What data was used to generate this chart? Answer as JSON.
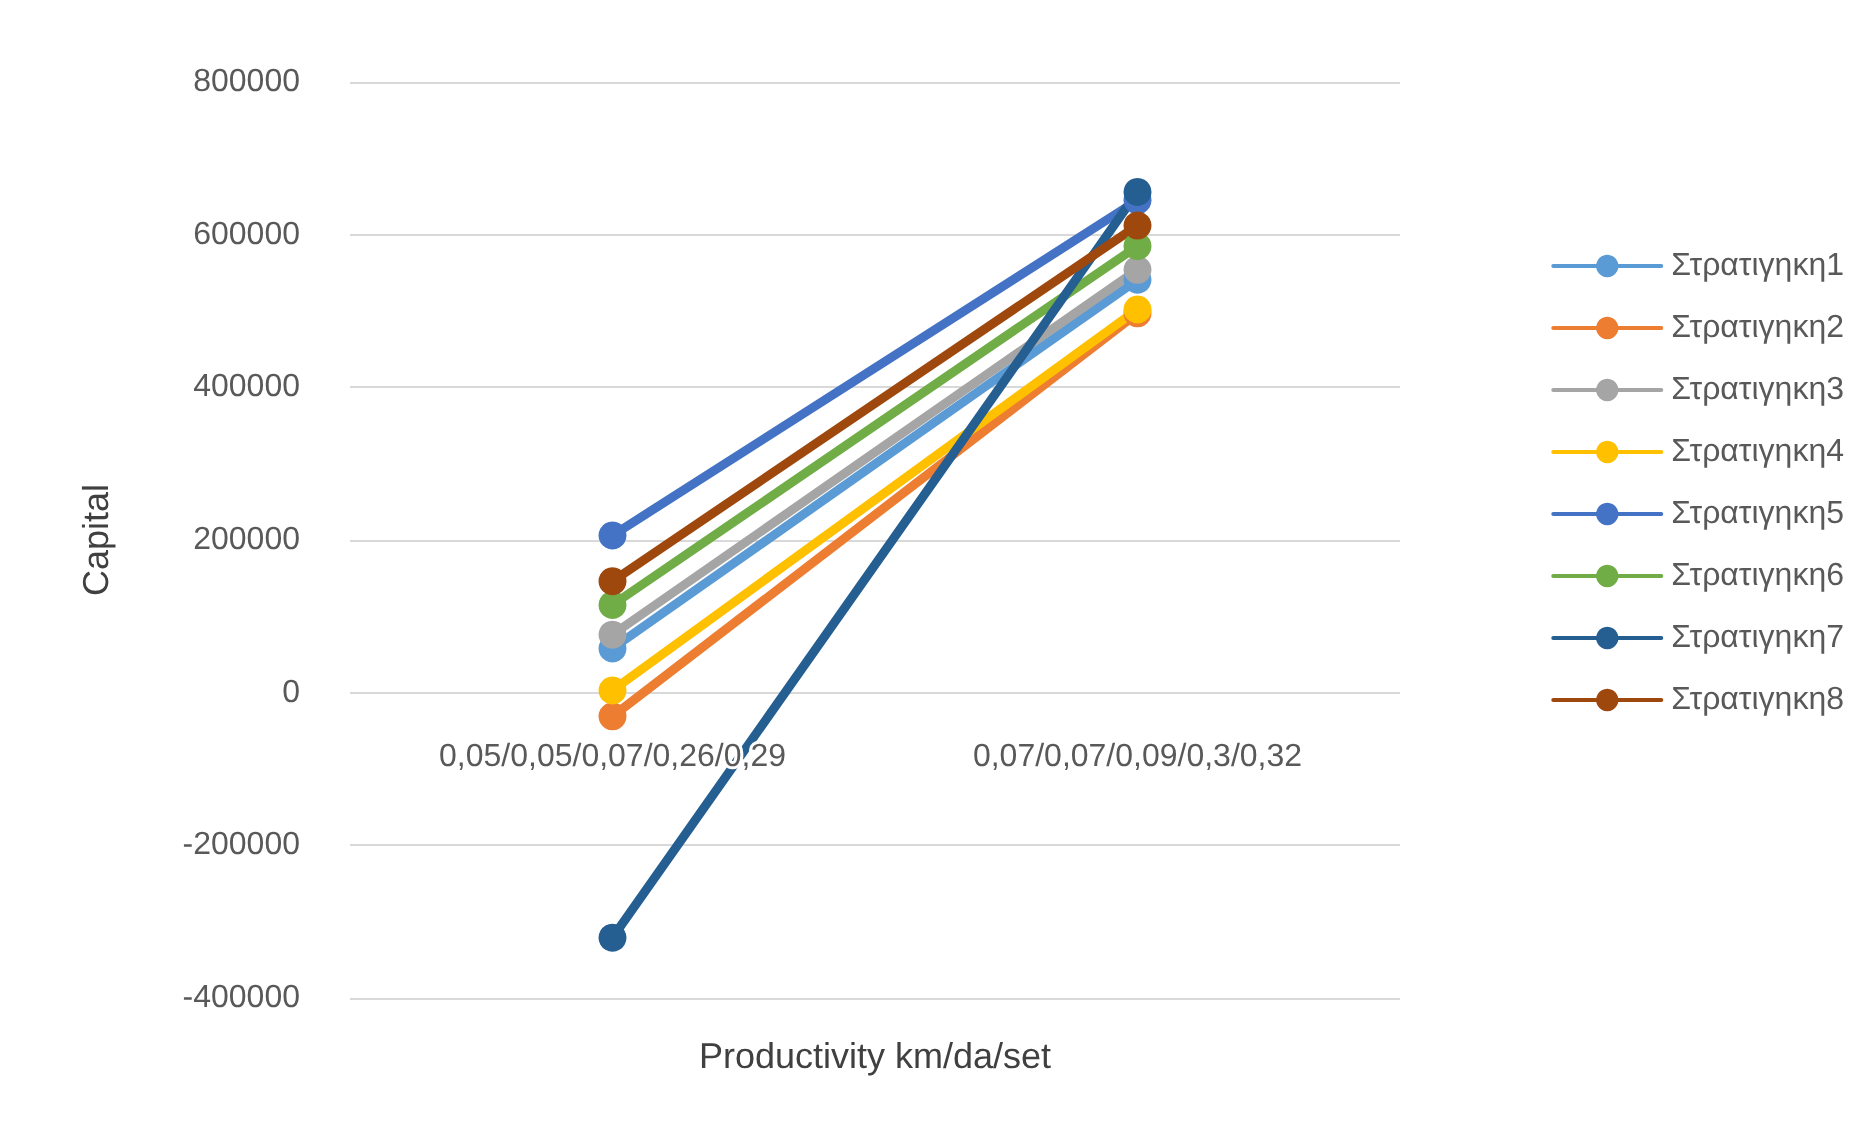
{
  "chart_data": {
    "type": "line",
    "xlabel": "Productivity km/da/set",
    "ylabel": "Capital",
    "categories": [
      "0,05/0,05/0,07/0,26/0,29",
      "0,07/0,07/0,09/0,3/0,32"
    ],
    "series": [
      {
        "name": "Στρατιγηκη1",
        "color": "#5b9bd5",
        "values": [
          58000,
          541000
        ]
      },
      {
        "name": "Στρατιγηκη2",
        "color": "#ed7d31",
        "values": [
          -31000,
          497000
        ]
      },
      {
        "name": "Στρατιγηκη3",
        "color": "#a5a5a5",
        "values": [
          76000,
          554000
        ]
      },
      {
        "name": "Στρατιγηκη4",
        "color": "#ffc000",
        "values": [
          3000,
          502000
        ]
      },
      {
        "name": "Στρατιγηκη5",
        "color": "#4472c4",
        "values": [
          206000,
          645000
        ]
      },
      {
        "name": "Στρατιγηκη6",
        "color": "#70ad47",
        "values": [
          115000,
          585000
        ]
      },
      {
        "name": "Στρατιγηκη7",
        "color": "#255e91",
        "values": [
          -321000,
          656000
        ]
      },
      {
        "name": "Στρατιγηκη8",
        "color": "#9e480e",
        "values": [
          146000,
          612000
        ]
      }
    ],
    "ylim": [
      -400000,
      800000
    ],
    "yticks": [
      -400000,
      -200000,
      0,
      200000,
      400000,
      600000,
      800000
    ],
    "grid": "y",
    "legend": "right",
    "marker": "circle",
    "line_style": "solid"
  }
}
